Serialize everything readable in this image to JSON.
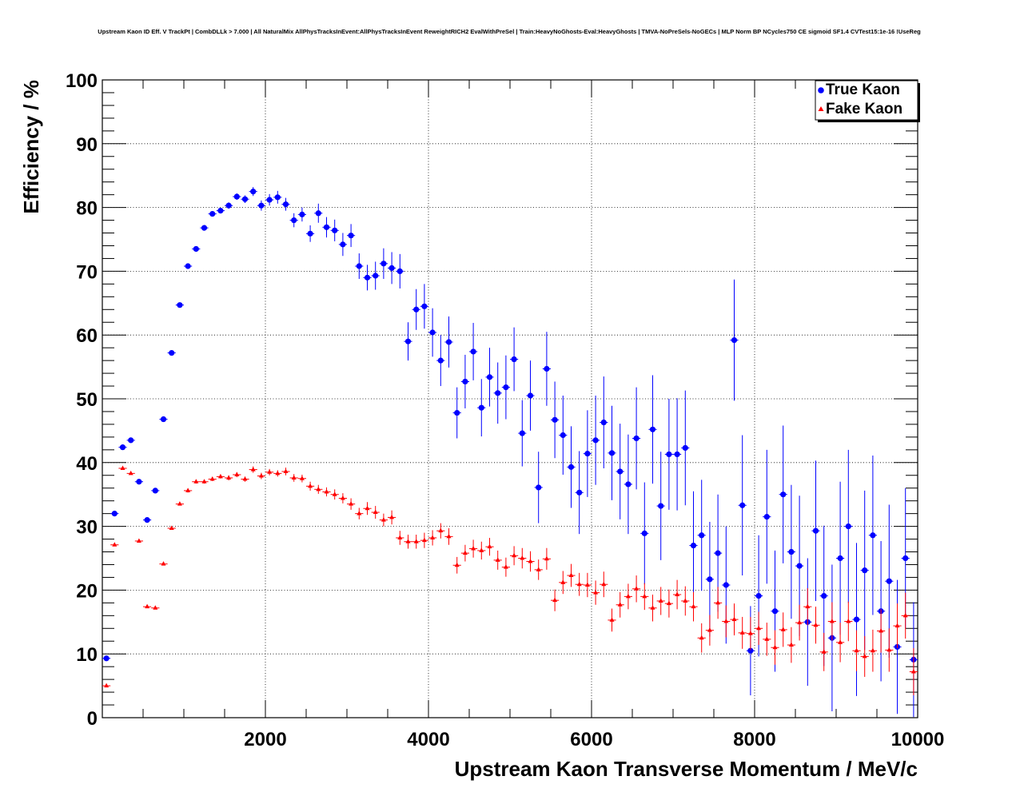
{
  "chart_data": {
    "type": "scatter",
    "title": "Upstream Kaon ID Eff. V TrackPt | CombDLLk > 7.000 | All NaturalMix AllPhysTracksInEvent:AllPhysTracksInEvent ReweightRICH2 EvalWithPreSel | Train:HeavyNoGhosts-Eval:HeavyGhosts | TMVA-NoPreSels-NoGECs | MLP Norm BP NCycles750 CE sigmoid SF1.4 CVTest15:1e-16 !UseReg",
    "xlabel": "Upstream Kaon Transverse Momentum / MeV/c",
    "ylabel": "Efficiency / %",
    "xlim": [
      0,
      10000
    ],
    "ylim": [
      0,
      100
    ],
    "grid": true,
    "legend_position": "top-right",
    "x_ticks": [
      "2000",
      "4000",
      "6000",
      "8000",
      "10000"
    ],
    "y_ticks": [
      "0",
      "10",
      "20",
      "30",
      "40",
      "50",
      "60",
      "70",
      "80",
      "90",
      "100"
    ],
    "series": [
      {
        "name": "True Kaon",
        "color": "#0000ff",
        "marker": "circle",
        "points": [
          [
            50,
            9.3,
            0.3
          ],
          [
            150,
            32.0,
            0.3
          ],
          [
            250,
            42.4,
            0.3
          ],
          [
            350,
            43.5,
            0.3
          ],
          [
            450,
            37.0,
            0.3
          ],
          [
            550,
            31.0,
            0.3
          ],
          [
            650,
            35.6,
            0.3
          ],
          [
            750,
            46.8,
            0.3
          ],
          [
            850,
            57.2,
            0.3
          ],
          [
            950,
            64.7,
            0.3
          ],
          [
            1050,
            70.8,
            0.3
          ],
          [
            1150,
            73.5,
            0.3
          ],
          [
            1250,
            76.8,
            0.3
          ],
          [
            1350,
            79.0,
            0.4
          ],
          [
            1450,
            79.5,
            0.4
          ],
          [
            1550,
            80.3,
            0.5
          ],
          [
            1650,
            81.7,
            0.5
          ],
          [
            1750,
            81.3,
            0.6
          ],
          [
            1850,
            82.5,
            0.7
          ],
          [
            1950,
            80.3,
            0.8
          ],
          [
            2050,
            81.2,
            0.9
          ],
          [
            2150,
            81.6,
            1.0
          ],
          [
            2250,
            80.5,
            1.0
          ],
          [
            2350,
            78.0,
            1.1
          ],
          [
            2450,
            78.9,
            1.1
          ],
          [
            2550,
            75.9,
            1.3
          ],
          [
            2650,
            79.1,
            1.5
          ],
          [
            2750,
            76.9,
            1.6
          ],
          [
            2850,
            76.4,
            1.7
          ],
          [
            2950,
            74.2,
            1.8
          ],
          [
            3050,
            75.6,
            1.8
          ],
          [
            3150,
            70.8,
            2.0
          ],
          [
            3250,
            69.0,
            2.0
          ],
          [
            3350,
            69.3,
            2.2
          ],
          [
            3450,
            71.2,
            2.4
          ],
          [
            3550,
            70.5,
            2.5
          ],
          [
            3650,
            70.0,
            2.7
          ],
          [
            3750,
            59.0,
            3.0
          ],
          [
            3850,
            64.0,
            3.2
          ],
          [
            3950,
            64.5,
            3.5
          ],
          [
            4050,
            60.4,
            3.8
          ],
          [
            4150,
            56.0,
            4.0
          ],
          [
            4250,
            58.9,
            4.0
          ],
          [
            4350,
            47.8,
            4.0
          ],
          [
            4450,
            52.7,
            4.2
          ],
          [
            4550,
            57.4,
            4.5
          ],
          [
            4650,
            48.6,
            4.5
          ],
          [
            4750,
            53.4,
            4.6
          ],
          [
            4850,
            50.9,
            4.8
          ],
          [
            4950,
            51.8,
            5.0
          ],
          [
            5050,
            56.2,
            5.0
          ],
          [
            5150,
            44.6,
            5.2
          ],
          [
            5250,
            50.5,
            5.5
          ],
          [
            5350,
            36.1,
            5.6
          ],
          [
            5450,
            54.7,
            5.8
          ],
          [
            5550,
            46.7,
            6.0
          ],
          [
            5650,
            44.3,
            6.2
          ],
          [
            5750,
            39.3,
            6.4
          ],
          [
            5850,
            35.3,
            6.5
          ],
          [
            5950,
            41.4,
            6.8
          ],
          [
            6050,
            43.5,
            7.0
          ],
          [
            6150,
            46.3,
            7.2
          ],
          [
            6250,
            41.5,
            7.4
          ],
          [
            6350,
            38.6,
            7.5
          ],
          [
            6450,
            36.6,
            7.8
          ],
          [
            6550,
            43.8,
            8.0
          ],
          [
            6650,
            28.9,
            8.0
          ],
          [
            6750,
            45.2,
            8.5
          ],
          [
            6850,
            33.2,
            8.5
          ],
          [
            6950,
            41.3,
            8.7
          ],
          [
            7050,
            41.3,
            8.8
          ],
          [
            7150,
            42.3,
            9.0
          ],
          [
            7250,
            27.0,
            8.5
          ],
          [
            7350,
            28.6,
            8.7
          ],
          [
            7450,
            21.7,
            9.0
          ],
          [
            7550,
            25.8,
            9.2
          ],
          [
            7650,
            20.8,
            9.2
          ],
          [
            7750,
            59.2,
            9.5
          ],
          [
            7850,
            33.3,
            11.0
          ],
          [
            7950,
            10.5,
            7.0
          ],
          [
            8050,
            19.1,
            9.5
          ],
          [
            8150,
            31.5,
            10.5
          ],
          [
            8250,
            16.7,
            9.5
          ],
          [
            8350,
            35.0,
            10.8
          ],
          [
            8450,
            26.0,
            10.5
          ],
          [
            8550,
            23.8,
            11.0
          ],
          [
            8650,
            15.0,
            10.0
          ],
          [
            8750,
            29.3,
            11.0
          ],
          [
            8850,
            19.1,
            11.0
          ],
          [
            8950,
            12.5,
            11.5
          ],
          [
            9050,
            25.0,
            12.0
          ],
          [
            9150,
            30.0,
            12.0
          ],
          [
            9250,
            15.4,
            12.0
          ],
          [
            9350,
            23.1,
            12.5
          ],
          [
            9450,
            28.6,
            12.5
          ],
          [
            9550,
            16.7,
            11.0
          ],
          [
            9650,
            21.4,
            12.0
          ],
          [
            9750,
            11.1,
            10.5
          ],
          [
            9850,
            25.0,
            11.0
          ],
          [
            9950,
            9.1,
            9.0
          ]
        ]
      },
      {
        "name": "Fake Kaon",
        "color": "#ff0000",
        "marker": "triangle",
        "points": [
          [
            50,
            5.0,
            0.2
          ],
          [
            150,
            27.1,
            0.2
          ],
          [
            250,
            39.1,
            0.2
          ],
          [
            350,
            38.3,
            0.2
          ],
          [
            450,
            27.7,
            0.2
          ],
          [
            550,
            17.4,
            0.2
          ],
          [
            650,
            17.2,
            0.2
          ],
          [
            750,
            24.1,
            0.2
          ],
          [
            850,
            29.7,
            0.2
          ],
          [
            950,
            33.5,
            0.2
          ],
          [
            1050,
            35.6,
            0.3
          ],
          [
            1150,
            37.0,
            0.3
          ],
          [
            1250,
            37.0,
            0.3
          ],
          [
            1350,
            37.4,
            0.3
          ],
          [
            1450,
            37.8,
            0.3
          ],
          [
            1550,
            37.6,
            0.4
          ],
          [
            1650,
            38.1,
            0.4
          ],
          [
            1750,
            37.4,
            0.4
          ],
          [
            1850,
            38.9,
            0.5
          ],
          [
            1950,
            37.9,
            0.5
          ],
          [
            2050,
            38.5,
            0.5
          ],
          [
            2150,
            38.3,
            0.5
          ],
          [
            2250,
            38.6,
            0.6
          ],
          [
            2350,
            37.6,
            0.6
          ],
          [
            2450,
            37.5,
            0.6
          ],
          [
            2550,
            36.3,
            0.7
          ],
          [
            2650,
            35.8,
            0.7
          ],
          [
            2750,
            35.4,
            0.7
          ],
          [
            2850,
            35.0,
            0.8
          ],
          [
            2950,
            34.4,
            0.8
          ],
          [
            3050,
            33.5,
            0.9
          ],
          [
            3150,
            32.0,
            0.9
          ],
          [
            3250,
            32.8,
            1.0
          ],
          [
            3350,
            32.2,
            1.0
          ],
          [
            3450,
            31.0,
            1.0
          ],
          [
            3550,
            31.4,
            1.1
          ],
          [
            3650,
            28.2,
            1.1
          ],
          [
            3750,
            27.6,
            1.1
          ],
          [
            3850,
            27.6,
            1.1
          ],
          [
            3950,
            27.8,
            1.2
          ],
          [
            4050,
            28.2,
            1.2
          ],
          [
            4150,
            29.3,
            1.2
          ],
          [
            4250,
            28.4,
            1.3
          ],
          [
            4350,
            23.9,
            1.3
          ],
          [
            4450,
            25.8,
            1.3
          ],
          [
            4550,
            26.5,
            1.4
          ],
          [
            4650,
            26.2,
            1.4
          ],
          [
            4750,
            26.8,
            1.4
          ],
          [
            4850,
            24.7,
            1.5
          ],
          [
            4950,
            23.6,
            1.5
          ],
          [
            5050,
            25.4,
            1.5
          ],
          [
            5150,
            25.0,
            1.6
          ],
          [
            5250,
            24.5,
            1.6
          ],
          [
            5350,
            23.2,
            1.6
          ],
          [
            5450,
            24.9,
            1.7
          ],
          [
            5550,
            18.4,
            1.7
          ],
          [
            5650,
            21.2,
            1.8
          ],
          [
            5750,
            22.3,
            1.8
          ],
          [
            5850,
            20.9,
            1.8
          ],
          [
            5950,
            20.8,
            1.9
          ],
          [
            6050,
            19.6,
            1.9
          ],
          [
            6150,
            20.9,
            2.0
          ],
          [
            6250,
            15.3,
            1.8
          ],
          [
            6350,
            17.7,
            2.0
          ],
          [
            6450,
            19.0,
            2.0
          ],
          [
            6550,
            20.2,
            2.1
          ],
          [
            6650,
            19.0,
            2.1
          ],
          [
            6750,
            17.2,
            2.1
          ],
          [
            6850,
            18.3,
            2.2
          ],
          [
            6950,
            17.9,
            2.2
          ],
          [
            7050,
            19.3,
            2.3
          ],
          [
            7150,
            18.3,
            2.3
          ],
          [
            7250,
            17.4,
            2.3
          ],
          [
            7350,
            12.5,
            2.3
          ],
          [
            7450,
            13.7,
            2.4
          ],
          [
            7550,
            18.0,
            2.5
          ],
          [
            7650,
            15.1,
            2.5
          ],
          [
            7750,
            15.4,
            2.5
          ],
          [
            7850,
            13.3,
            2.5
          ],
          [
            7950,
            13.2,
            2.6
          ],
          [
            8050,
            14.0,
            2.6
          ],
          [
            8150,
            12.3,
            2.6
          ],
          [
            8250,
            11.0,
            2.7
          ],
          [
            8350,
            13.8,
            2.7
          ],
          [
            8450,
            11.4,
            2.8
          ],
          [
            8550,
            14.9,
            2.8
          ],
          [
            8650,
            17.4,
            2.9
          ],
          [
            8750,
            14.5,
            2.9
          ],
          [
            8850,
            10.3,
            3.0
          ],
          [
            8950,
            15.1,
            3.0
          ],
          [
            9050,
            11.8,
            3.1
          ],
          [
            9150,
            15.1,
            3.1
          ],
          [
            9250,
            10.5,
            3.2
          ],
          [
            9350,
            9.6,
            3.2
          ],
          [
            9450,
            10.5,
            3.3
          ],
          [
            9550,
            13.6,
            3.4
          ],
          [
            9650,
            10.6,
            3.4
          ],
          [
            9750,
            14.4,
            3.5
          ],
          [
            9850,
            16.0,
            3.6
          ],
          [
            9950,
            7.2,
            3.7
          ]
        ]
      }
    ]
  }
}
